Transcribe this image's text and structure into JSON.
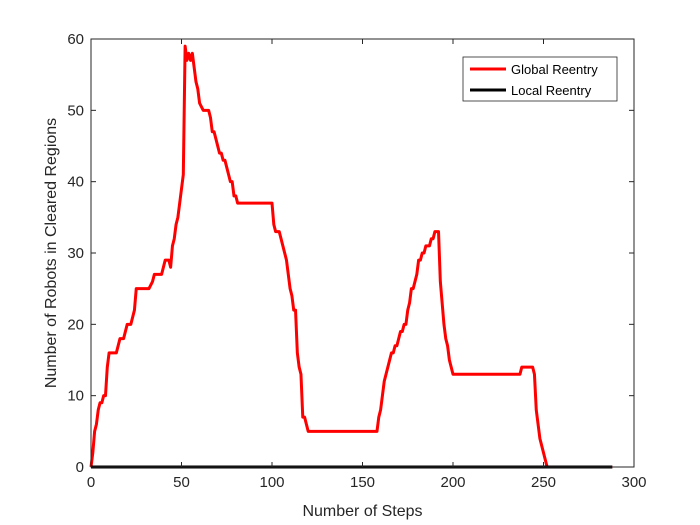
{
  "chart_data": {
    "type": "line",
    "title": "",
    "xlabel": "Number of Steps",
    "ylabel": "Number of Robots in Cleared Regions",
    "xlim": [
      0,
      300
    ],
    "ylim": [
      0,
      60
    ],
    "xticks": [
      0,
      50,
      100,
      150,
      200,
      250,
      300
    ],
    "yticks": [
      0,
      10,
      20,
      30,
      40,
      50,
      60
    ],
    "grid": false,
    "legend_position": "top-right",
    "series": [
      {
        "name": "Global Reentry",
        "color": "#ff0000",
        "x": [
          0,
          1,
          2,
          3,
          4,
          5,
          6,
          7,
          8,
          9,
          10,
          11,
          12,
          14,
          15,
          16,
          17,
          18,
          20,
          21,
          22,
          23,
          24,
          25,
          26,
          30,
          32,
          34,
          35,
          37,
          39,
          40,
          41,
          42,
          43,
          44,
          45,
          46,
          47,
          48,
          49,
          50,
          51,
          52,
          53,
          54,
          55,
          56,
          57,
          58,
          59,
          60,
          62,
          63,
          64,
          65,
          66,
          67,
          68,
          69,
          70,
          71,
          72,
          73,
          74,
          75,
          76,
          77,
          78,
          79,
          80,
          81,
          82,
          83,
          85,
          90,
          95,
          100,
          101,
          102,
          104,
          105,
          106,
          107,
          108,
          109,
          110,
          111,
          112,
          113,
          114,
          115,
          116,
          117,
          118,
          120,
          125,
          130,
          140,
          150,
          157,
          158,
          159,
          160,
          161,
          162,
          163,
          164,
          165,
          166,
          167,
          168,
          169,
          170,
          171,
          172,
          173,
          174,
          175,
          176,
          177,
          178,
          179,
          180,
          181,
          182,
          183,
          184,
          185,
          186,
          187,
          188,
          189,
          190,
          191,
          192,
          193,
          194,
          195,
          196,
          197,
          198,
          199,
          200,
          202,
          205,
          210,
          220,
          230,
          237,
          238,
          239,
          240,
          241,
          242,
          243,
          244,
          245,
          246,
          247,
          248,
          249,
          250,
          251,
          252,
          253,
          260,
          270,
          288
        ],
        "values": [
          0,
          2,
          5,
          6,
          8,
          9,
          9,
          10,
          10,
          14,
          16,
          16,
          16,
          16,
          17,
          18,
          18,
          18,
          20,
          20,
          20,
          21,
          22,
          25,
          25,
          25,
          25,
          26,
          27,
          27,
          27,
          28,
          29,
          29,
          29,
          28,
          31,
          32,
          34,
          35,
          37,
          39,
          41,
          59,
          57,
          58,
          57,
          58,
          56,
          54,
          53,
          51,
          50,
          50,
          50,
          50,
          49,
          47,
          47,
          46,
          45,
          44,
          44,
          43,
          43,
          42,
          41,
          40,
          40,
          38,
          38,
          37,
          37,
          37,
          37,
          37,
          37,
          37,
          34,
          33,
          33,
          32,
          31,
          30,
          29,
          27,
          25,
          24,
          22,
          22,
          16,
          14,
          13,
          7,
          7,
          5,
          5,
          5,
          5,
          5,
          5,
          5,
          7,
          8,
          10,
          12,
          13,
          14,
          15,
          16,
          16,
          17,
          17,
          18,
          19,
          19,
          20,
          20,
          22,
          23,
          25,
          25,
          26,
          27,
          29,
          29,
          30,
          30,
          31,
          31,
          31,
          32,
          32,
          33,
          33,
          33,
          26,
          23,
          20,
          18,
          17,
          15,
          14,
          13,
          13,
          13,
          13,
          13,
          13,
          13,
          14,
          14,
          14,
          14,
          14,
          14,
          14,
          13,
          8,
          6,
          4,
          3,
          2,
          1,
          0,
          0,
          0,
          0,
          0
        ]
      },
      {
        "name": "Local Reentry",
        "color": "#000000",
        "x": [
          0,
          288
        ],
        "values": [
          0,
          0
        ]
      }
    ]
  }
}
